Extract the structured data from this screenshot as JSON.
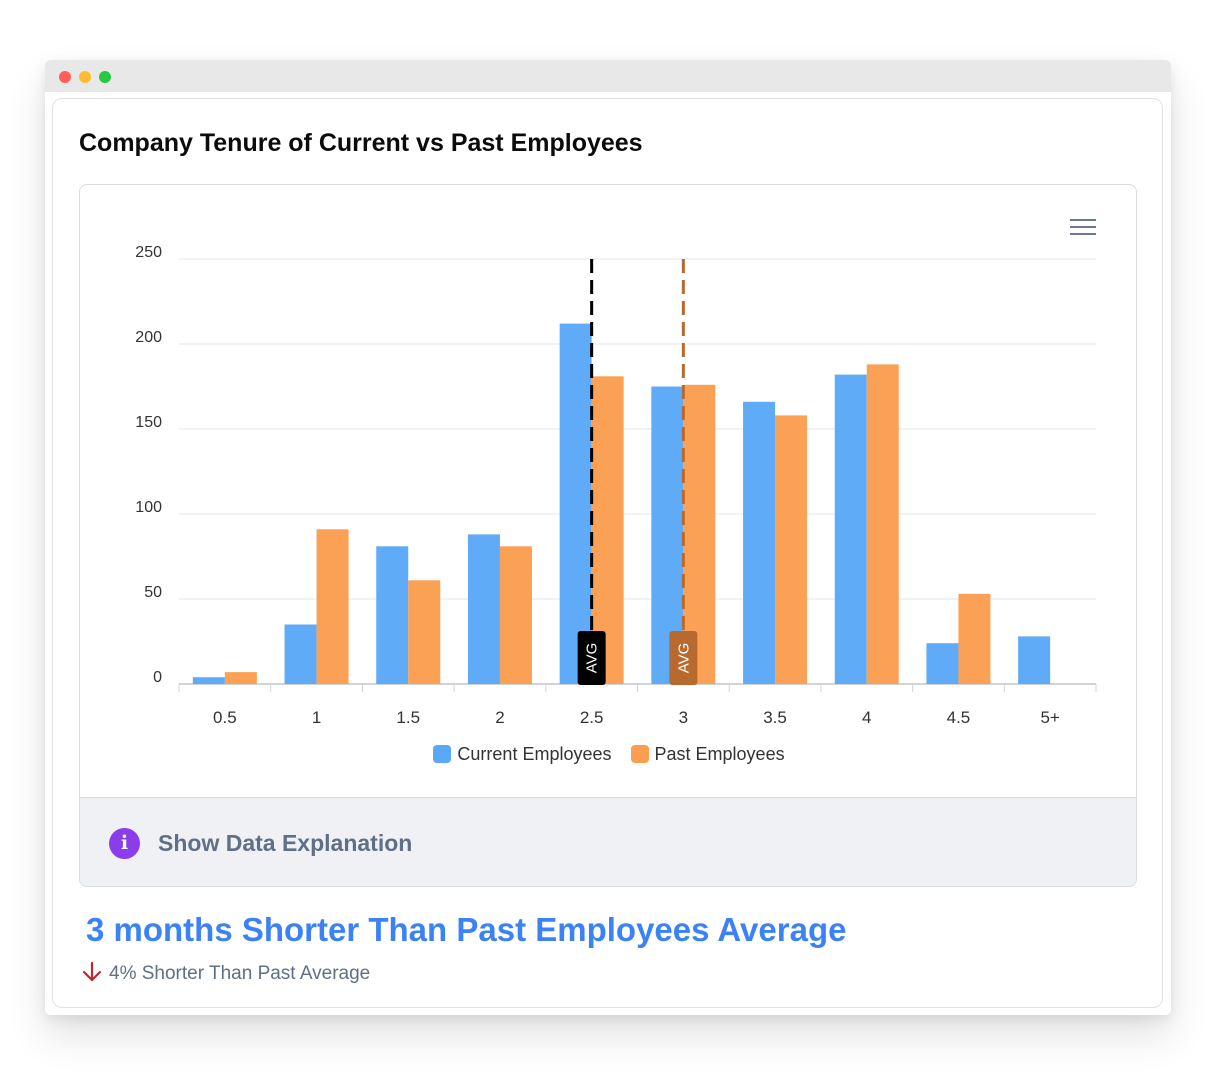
{
  "window": {
    "title_dots": [
      "close",
      "minimize",
      "maximize"
    ]
  },
  "card": {
    "title": "Company Tenure of Current vs Past Employees"
  },
  "chart_data": {
    "type": "bar",
    "title": "Company Tenure of Current vs Past Employees",
    "xlabel": "",
    "ylabel": "",
    "categories": [
      "0.5",
      "1",
      "1.5",
      "2",
      "2.5",
      "3",
      "3.5",
      "4",
      "4.5",
      "5+"
    ],
    "series": [
      {
        "name": "Current Employees",
        "color": "#5aa8f8",
        "values": [
          4,
          35,
          81,
          88,
          212,
          175,
          166,
          182,
          24,
          28
        ]
      },
      {
        "name": "Past Employees",
        "color": "#fb9e4f",
        "values": [
          7,
          91,
          61,
          81,
          181,
          176,
          158,
          188,
          53,
          0
        ]
      }
    ],
    "ylim": [
      0,
      250
    ],
    "yticks": [
      0,
      50,
      100,
      150,
      200,
      250
    ],
    "grid": true,
    "legend_position": "bottom",
    "annotations": [
      {
        "label": "AVG",
        "x": 2.5,
        "color": "#000000",
        "style": "dashed"
      },
      {
        "label": "AVG",
        "x": 3,
        "color": "#b86a2e",
        "style": "dashed"
      }
    ]
  },
  "explanation": {
    "label": "Show Data Explanation",
    "icon": "info-icon",
    "icon_color": "#8b3dea"
  },
  "summary": {
    "headline": "3 months Shorter Than Past Employees Average",
    "subline": "4% Shorter Than Past Average",
    "headline_color": "#3b82f6",
    "arrow_color": "#c0262d"
  }
}
